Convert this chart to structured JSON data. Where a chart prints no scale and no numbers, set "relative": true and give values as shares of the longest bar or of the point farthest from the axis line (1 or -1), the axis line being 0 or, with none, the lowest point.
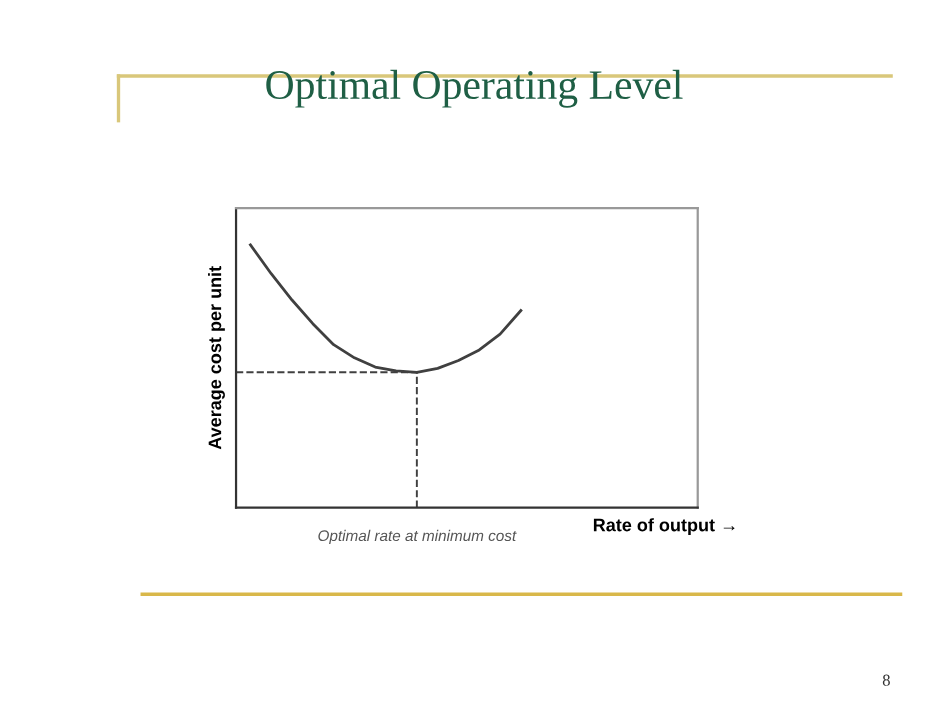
{
  "chart_data": {
    "type": "line",
    "title": "Optimal Operating Level",
    "xlabel": "Rate of output →",
    "ylabel": "Average cost per unit",
    "categories": [
      null,
      null,
      null,
      null,
      null,
      null,
      null,
      null,
      null,
      null,
      null,
      null,
      null,
      null
    ],
    "relative": true,
    "series": [
      {
        "color": "#404040",
        "values": [
          1.0,
          0.89,
          0.79,
          0.7,
          0.62,
          0.57,
          0.535,
          0.52,
          0.515,
          0.53,
          0.56,
          0.6,
          0.66,
          0.75
        ]
      }
    ],
    "ref_lines": [
      {
        "axis": "y",
        "value": 0.515,
        "line_style": "dashed",
        "color": "#404040"
      }
    ],
    "annotations": [
      "Optimal rate at minimum cost",
      "8"
    ],
    "legend": false,
    "marker": "none",
    "line_style": "solid"
  }
}
